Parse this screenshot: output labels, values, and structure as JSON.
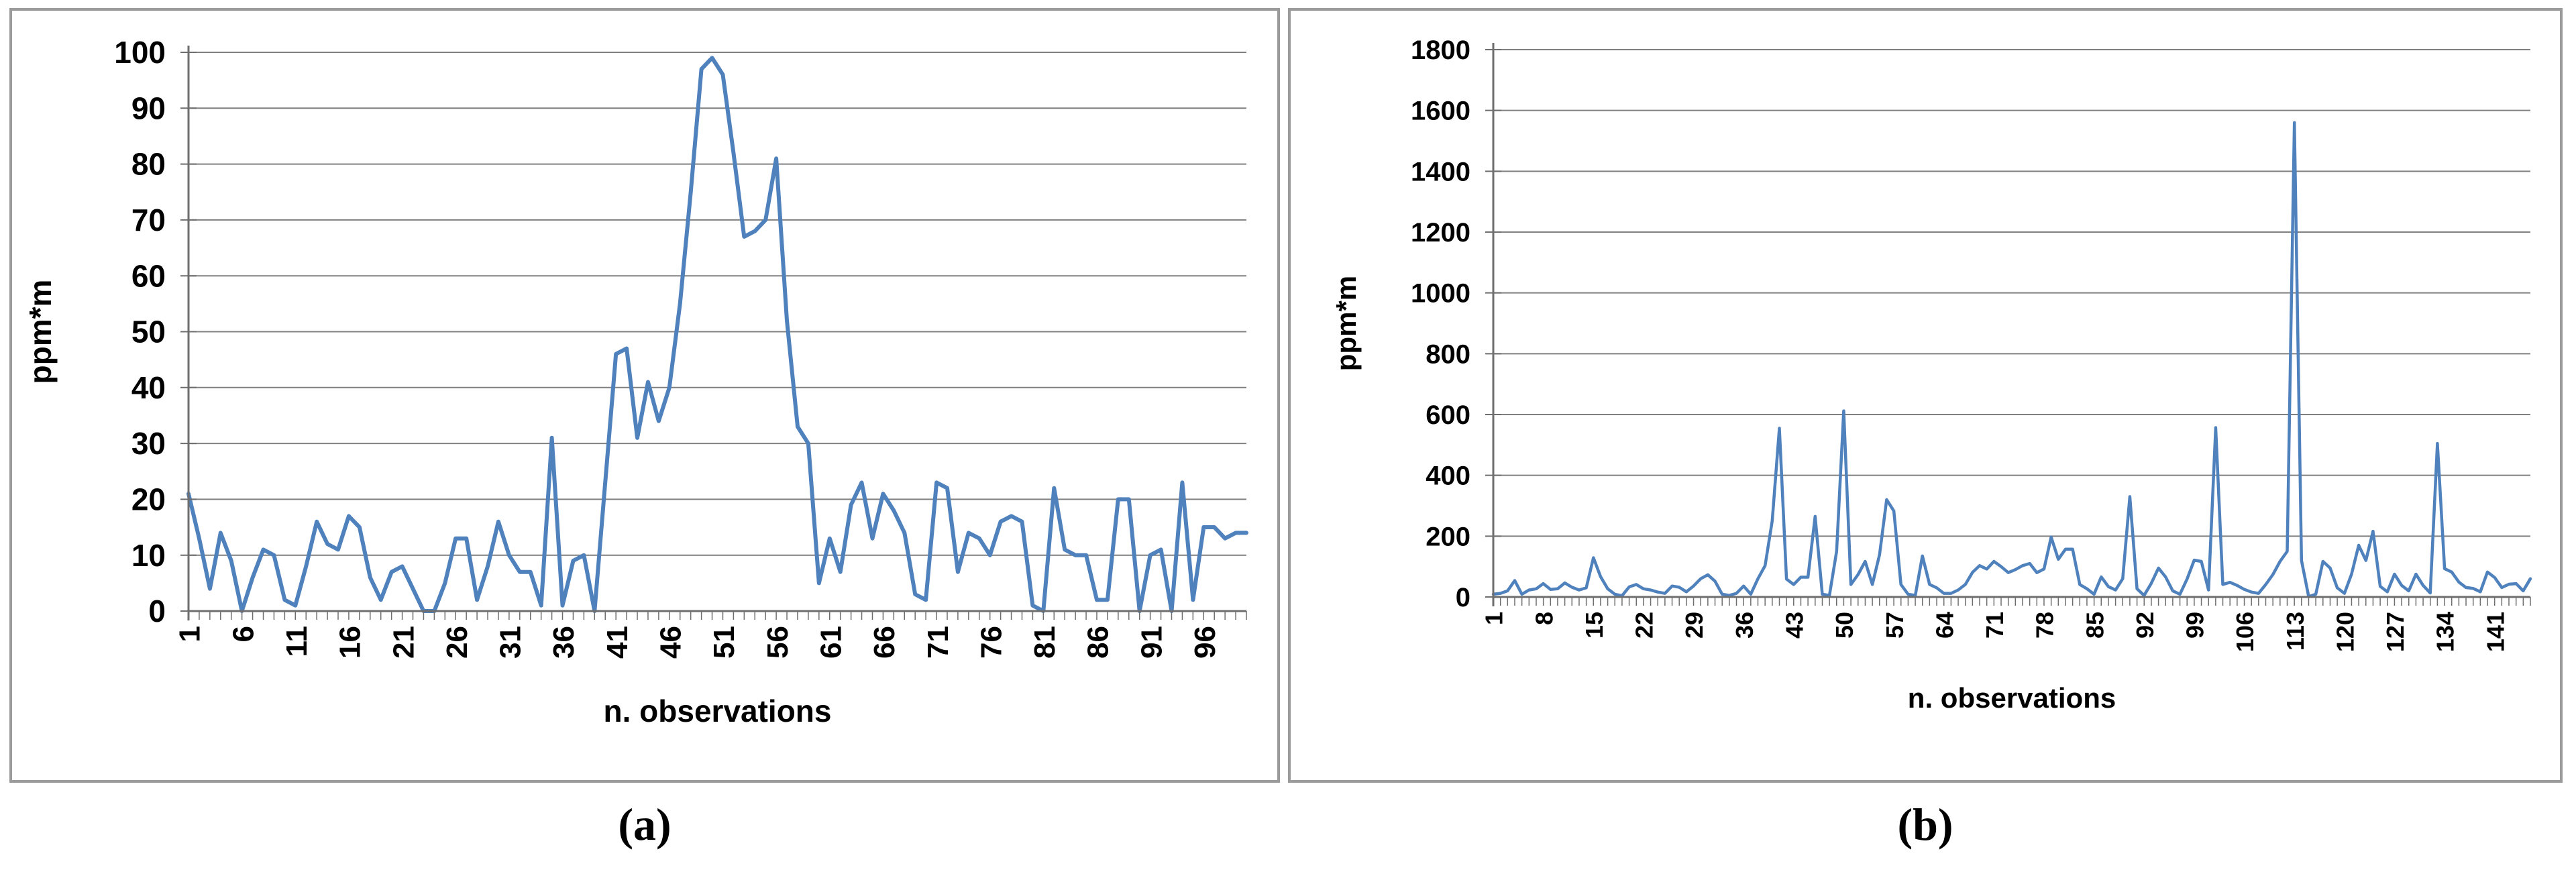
{
  "figure": {
    "captions": {
      "a": "(a)",
      "b": "(b)"
    },
    "colors": {
      "line": "#4f81bd",
      "grid": "#808080",
      "axis": "#6e6e6e",
      "panel_border": "#9b9b9b",
      "text": "#000000",
      "background": "#ffffff"
    }
  },
  "chart_data": [
    {
      "id": "a",
      "type": "line",
      "title": "",
      "xlabel": "n. observations",
      "ylabel": "ppm*m",
      "ylim": [
        0,
        100
      ],
      "ytick_step": 10,
      "yticks": [
        0,
        10,
        20,
        30,
        40,
        50,
        60,
        70,
        80,
        90,
        100
      ],
      "grid": "horizontal",
      "legend": "none",
      "xtick_labels": [
        "1",
        "6",
        "11",
        "16",
        "21",
        "26",
        "31",
        "36",
        "41",
        "46",
        "51",
        "56",
        "61",
        "66",
        "71",
        "76",
        "81",
        "86",
        "91",
        "96"
      ],
      "xtick_start": 1,
      "xtick_step": 5,
      "series": [
        {
          "name": "ppm*m",
          "values": [
            21,
            13,
            4,
            14,
            9,
            0,
            6,
            11,
            10,
            2,
            1,
            8,
            16,
            12,
            11,
            17,
            15,
            6,
            2,
            7,
            8,
            4,
            0,
            0,
            5,
            13,
            13,
            2,
            8,
            16,
            10,
            7,
            7,
            1,
            31,
            1,
            9,
            10,
            0,
            23,
            46,
            47,
            31,
            41,
            34,
            40,
            55,
            75,
            97,
            99,
            96,
            82,
            67,
            68,
            70,
            81,
            52,
            33,
            30,
            5,
            13,
            7,
            19,
            23,
            13,
            21,
            18,
            14,
            3,
            2,
            23,
            22,
            7,
            14,
            13,
            10,
            16,
            17,
            16,
            1,
            0,
            22,
            11,
            10,
            10,
            2,
            2,
            20,
            20,
            0,
            10,
            11,
            0,
            23,
            2,
            15,
            15,
            13,
            14,
            14
          ]
        }
      ]
    },
    {
      "id": "b",
      "type": "line",
      "title": "",
      "xlabel": "n. observations",
      "ylabel": "ppm*m",
      "ylim": [
        0,
        1800
      ],
      "ytick_step": 200,
      "yticks": [
        0,
        200,
        400,
        600,
        800,
        1000,
        1200,
        1400,
        1600,
        1800
      ],
      "grid": "horizontal",
      "legend": "none",
      "xtick_labels": [
        "1",
        "8",
        "15",
        "22",
        "29",
        "36",
        "43",
        "50",
        "57",
        "64",
        "71",
        "78",
        "85",
        "92",
        "99",
        "106",
        "113",
        "120",
        "127",
        "134",
        "141"
      ],
      "xtick_start": 1,
      "xtick_step": 7,
      "series": [
        {
          "name": "ppm*m",
          "values": [
            9,
            12,
            20,
            54,
            9,
            23,
            27,
            44,
            25,
            27,
            46,
            32,
            23,
            30,
            129,
            67,
            27,
            9,
            4,
            33,
            41,
            27,
            23,
            16,
            12,
            36,
            32,
            17,
            36,
            60,
            73,
            52,
            9,
            5,
            12,
            36,
            9,
            60,
            103,
            250,
            555,
            59,
            41,
            65,
            65,
            265,
            9,
            5,
            150,
            612,
            41,
            74,
            117,
            41,
            139,
            320,
            283,
            41,
            9,
            5,
            135,
            41,
            30,
            12,
            12,
            23,
            41,
            81,
            103,
            92,
            117,
            100,
            80,
            90,
            103,
            110,
            80,
            92,
            197,
            124,
            157,
            157,
            41,
            27,
            9,
            66,
            34,
            23,
            60,
            330,
            27,
            5,
            45,
            95,
            66,
            20,
            9,
            59,
            121,
            117,
            23,
            557,
            41,
            48,
            38,
            25,
            16,
            12,
            41,
            74,
            117,
            150,
            1560,
            120,
            1,
            9,
            117,
            95,
            30,
            12,
            75,
            170,
            120,
            216,
            35,
            17,
            75,
            38,
            20,
            75,
            38,
            13,
            505,
            93,
            82,
            49,
            31,
            28,
            17,
            82,
            64,
            31,
            42,
            44,
            20,
            60
          ]
        }
      ]
    }
  ]
}
